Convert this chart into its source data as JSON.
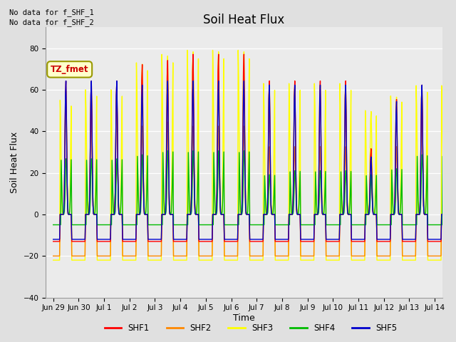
{
  "title": "Soil Heat Flux",
  "ylabel": "Soil Heat Flux",
  "xlabel": "Time",
  "annotation_lines": [
    "No data for f_SHF_1",
    "No data for f_SHF_2"
  ],
  "legend_label": "TZ_fmet",
  "ylim": [
    -40,
    90
  ],
  "yticks": [
    -40,
    -20,
    0,
    20,
    40,
    60,
    80
  ],
  "fig_bg": "#e0e0e0",
  "plot_bg": "#ebebeb",
  "colors": {
    "SHF1": "#ff0000",
    "SHF2": "#ff8800",
    "SHF3": "#ffff00",
    "SHF4": "#00bb00",
    "SHF5": "#0000cc"
  },
  "x_tick_labels": [
    "Jun 29",
    "Jun 30",
    "Jul 1",
    "Jul 2",
    "Jul 3",
    "Jul 4",
    "Jul 5",
    "Jul 6",
    "Jul 7",
    "Jul 8",
    "Jul 9",
    "Jul 10",
    "Jul 11",
    "Jul 12",
    "Jul 13",
    "Jul 14"
  ],
  "title_fontsize": 12,
  "label_fontsize": 9,
  "tick_fontsize": 7.5,
  "linewidth": 1.0,
  "num_days": 16
}
